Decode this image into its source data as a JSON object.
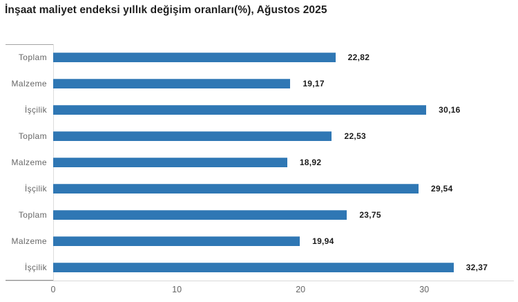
{
  "title": "İnşaat maliyet endeksi yıllık değişim oranları(%), Ağustos 2025",
  "chart_data": {
    "type": "bar",
    "orientation": "horizontal",
    "title": "İnşaat maliyet endeksi yıllık değişim oranları(%), Ağustos 2025",
    "categories": [
      "Toplam",
      "Malzeme",
      "İşçilik",
      "Toplam",
      "Malzeme",
      "İşçilik",
      "Toplam",
      "Malzeme",
      "İşçilik"
    ],
    "values": [
      22.82,
      19.17,
      30.16,
      22.53,
      18.92,
      29.54,
      23.75,
      19.94,
      32.37
    ],
    "value_labels": [
      "22,82",
      "19,17",
      "30,16",
      "22,53",
      "18,92",
      "29,54",
      "23,75",
      "19,94",
      "32,37"
    ],
    "xlabel": "",
    "ylabel": "",
    "xlim": [
      0,
      37.3
    ],
    "x_ticks": [
      0,
      10,
      20,
      30
    ],
    "x_tick_labels": [
      "0",
      "10",
      "20",
      "30"
    ],
    "grid": false,
    "legend": false,
    "bar_color": "#2f77b4"
  },
  "colors": {
    "bar": "#2f77b4",
    "title_text": "#1f1f1f",
    "category_text": "#666666",
    "value_text": "#1a1a1a",
    "tick_text": "#666666",
    "axis_line": "#dcdcdc",
    "baseline": "#d9d9d9"
  }
}
